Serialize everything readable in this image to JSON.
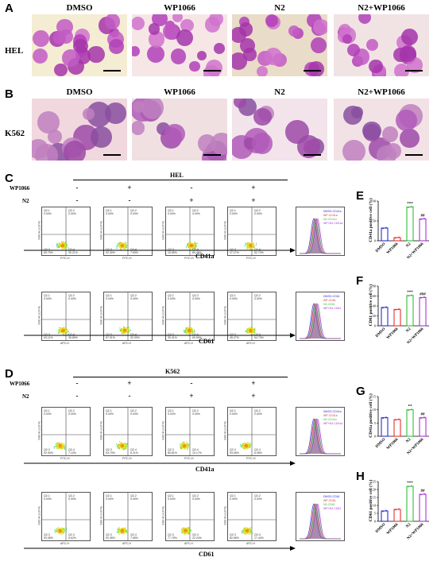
{
  "panel_letters": {
    "A": "A",
    "B": "B",
    "C": "C",
    "D": "D",
    "E": "E",
    "F": "F",
    "G": "G",
    "H": "H"
  },
  "micrograph_titles": [
    "DMSO",
    "WP1066",
    "N2",
    "N2+WP1066"
  ],
  "row_labels": {
    "hel": "HEL",
    "k562": "K562"
  },
  "flow_sections": {
    "C": {
      "cell_line": "HEL",
      "markers": [
        "CD41a",
        "CD61"
      ]
    },
    "D": {
      "cell_line": "K562",
      "markers": [
        "CD41a",
        "CD61"
      ]
    }
  },
  "treatment_labels": {
    "wp1066": "WP1066",
    "n2": "N2"
  },
  "treatment_signs": {
    "wp1066": [
      "-",
      "+",
      "-",
      "+"
    ],
    "n2": [
      "-",
      "-",
      "+",
      "+"
    ]
  },
  "facs_axes": {
    "y_cd41a": "SSC-H (x10^4)",
    "x_cd41a": "FITC-H",
    "y_cd61": "SSC-H (x10^4)",
    "x_cd61": "APC-H"
  },
  "facs_quadrants": [
    "Q2-1",
    "Q2-2",
    "Q2-3",
    "Q2-4"
  ],
  "facs_values": {
    "C_cd41a": [
      [
        "0.00%",
        "0.00%",
        "69.79%",
        "30.21%"
      ],
      [
        "0.00%",
        "0.00%",
        "92.30%",
        "7.69%"
      ],
      [
        "0.00%",
        "0.00%",
        "15.55%",
        "84.45%"
      ],
      [
        "0.00%",
        "0.00%",
        "47.27%",
        "52.73%"
      ]
    ],
    "C_cd61": [
      [
        "0.00%",
        "0.00%",
        "63.11%",
        "36.89%"
      ],
      [
        "0.00%",
        "0.00%",
        "67.01%",
        "32.99%"
      ],
      [
        "0.00%",
        "0.00%",
        "39.41%",
        "60.59%"
      ],
      [
        "0.00%",
        "0.00%",
        "45.27%",
        "54.73%"
      ]
    ],
    "D_cd41a": [
      [
        "0.00%",
        "0.00%",
        "92.90%",
        "7.10%"
      ],
      [
        "0.00%",
        "0.00%",
        "93.79%",
        "6.21%"
      ],
      [
        "0.02%",
        "0.00%",
        "89.81%",
        "10.17%"
      ],
      [
        "0.00%",
        "0.00%",
        "93.05%",
        "6.95%"
      ]
    ],
    "D_cd61": [
      [
        "0.00%",
        "0.00%",
        "93.38%",
        "6.62%"
      ],
      [
        "0.00%",
        "0.00%",
        "92.35%",
        "7.65%"
      ],
      [
        "0.00%",
        "0.00%",
        "77.76%",
        "22.24%"
      ],
      [
        "0.00%",
        "0.00%",
        "82.56%",
        "17.44%"
      ]
    ]
  },
  "histogram_legends": {
    "cd41a": [
      "DMSO-CD41a",
      "WP-CD41a",
      "N2-CD41a",
      "WP+N2-CD41a"
    ],
    "cd61": [
      "DMSO-CD61",
      "WP-CD61",
      "N2-CD61",
      "WP+N2-CD61"
    ]
  },
  "colors": {
    "dmso": "#2a2ad8",
    "wp1066": "#e83030",
    "n2": "#2fbf3a",
    "n2wp": "#b030d8",
    "stain": "#b040b0"
  },
  "chart_data": [
    {
      "id": "E",
      "type": "bar",
      "title": "",
      "ylabel": "CD41a positive cell (%)",
      "categories": [
        "DMSO",
        "WP1066",
        "N2",
        "N2+WP1066"
      ],
      "values": [
        32,
        8,
        85,
        55
      ],
      "ylim": [
        0,
        100
      ],
      "yticks": [
        0,
        50,
        100
      ],
      "sig": [
        "",
        "",
        "***",
        "##"
      ]
    },
    {
      "id": "F",
      "type": "bar",
      "title": "",
      "ylabel": "CD61 positive cell (%)",
      "categories": [
        "DMSO",
        "WP1066",
        "N2",
        "N2+WP1066"
      ],
      "values": [
        37,
        33,
        61,
        57
      ],
      "ylim": [
        0,
        80
      ],
      "yticks": [
        0,
        20,
        40,
        60,
        80
      ],
      "sig": [
        "",
        "",
        "***",
        "###"
      ]
    },
    {
      "id": "G",
      "type": "bar",
      "title": "",
      "ylabel": "CD41a positive cell (%)",
      "categories": [
        "DMSO",
        "WP1066",
        "N2",
        "N2+WP1066"
      ],
      "values": [
        7,
        6.3,
        10,
        7
      ],
      "ylim": [
        0,
        15
      ],
      "yticks": [
        0,
        5,
        10,
        15
      ],
      "sig": [
        "",
        "",
        "**",
        "##"
      ]
    },
    {
      "id": "H",
      "type": "bar",
      "title": "",
      "ylabel": "CD61 positive cell (%)",
      "categories": [
        "DMSO",
        "WP1066",
        "N2",
        "N2+WP1066"
      ],
      "values": [
        6.5,
        7.5,
        22,
        17
      ],
      "ylim": [
        0,
        25
      ],
      "yticks": [
        0,
        5,
        10,
        15,
        20,
        25
      ],
      "sig": [
        "",
        "",
        "***",
        "##"
      ]
    }
  ]
}
